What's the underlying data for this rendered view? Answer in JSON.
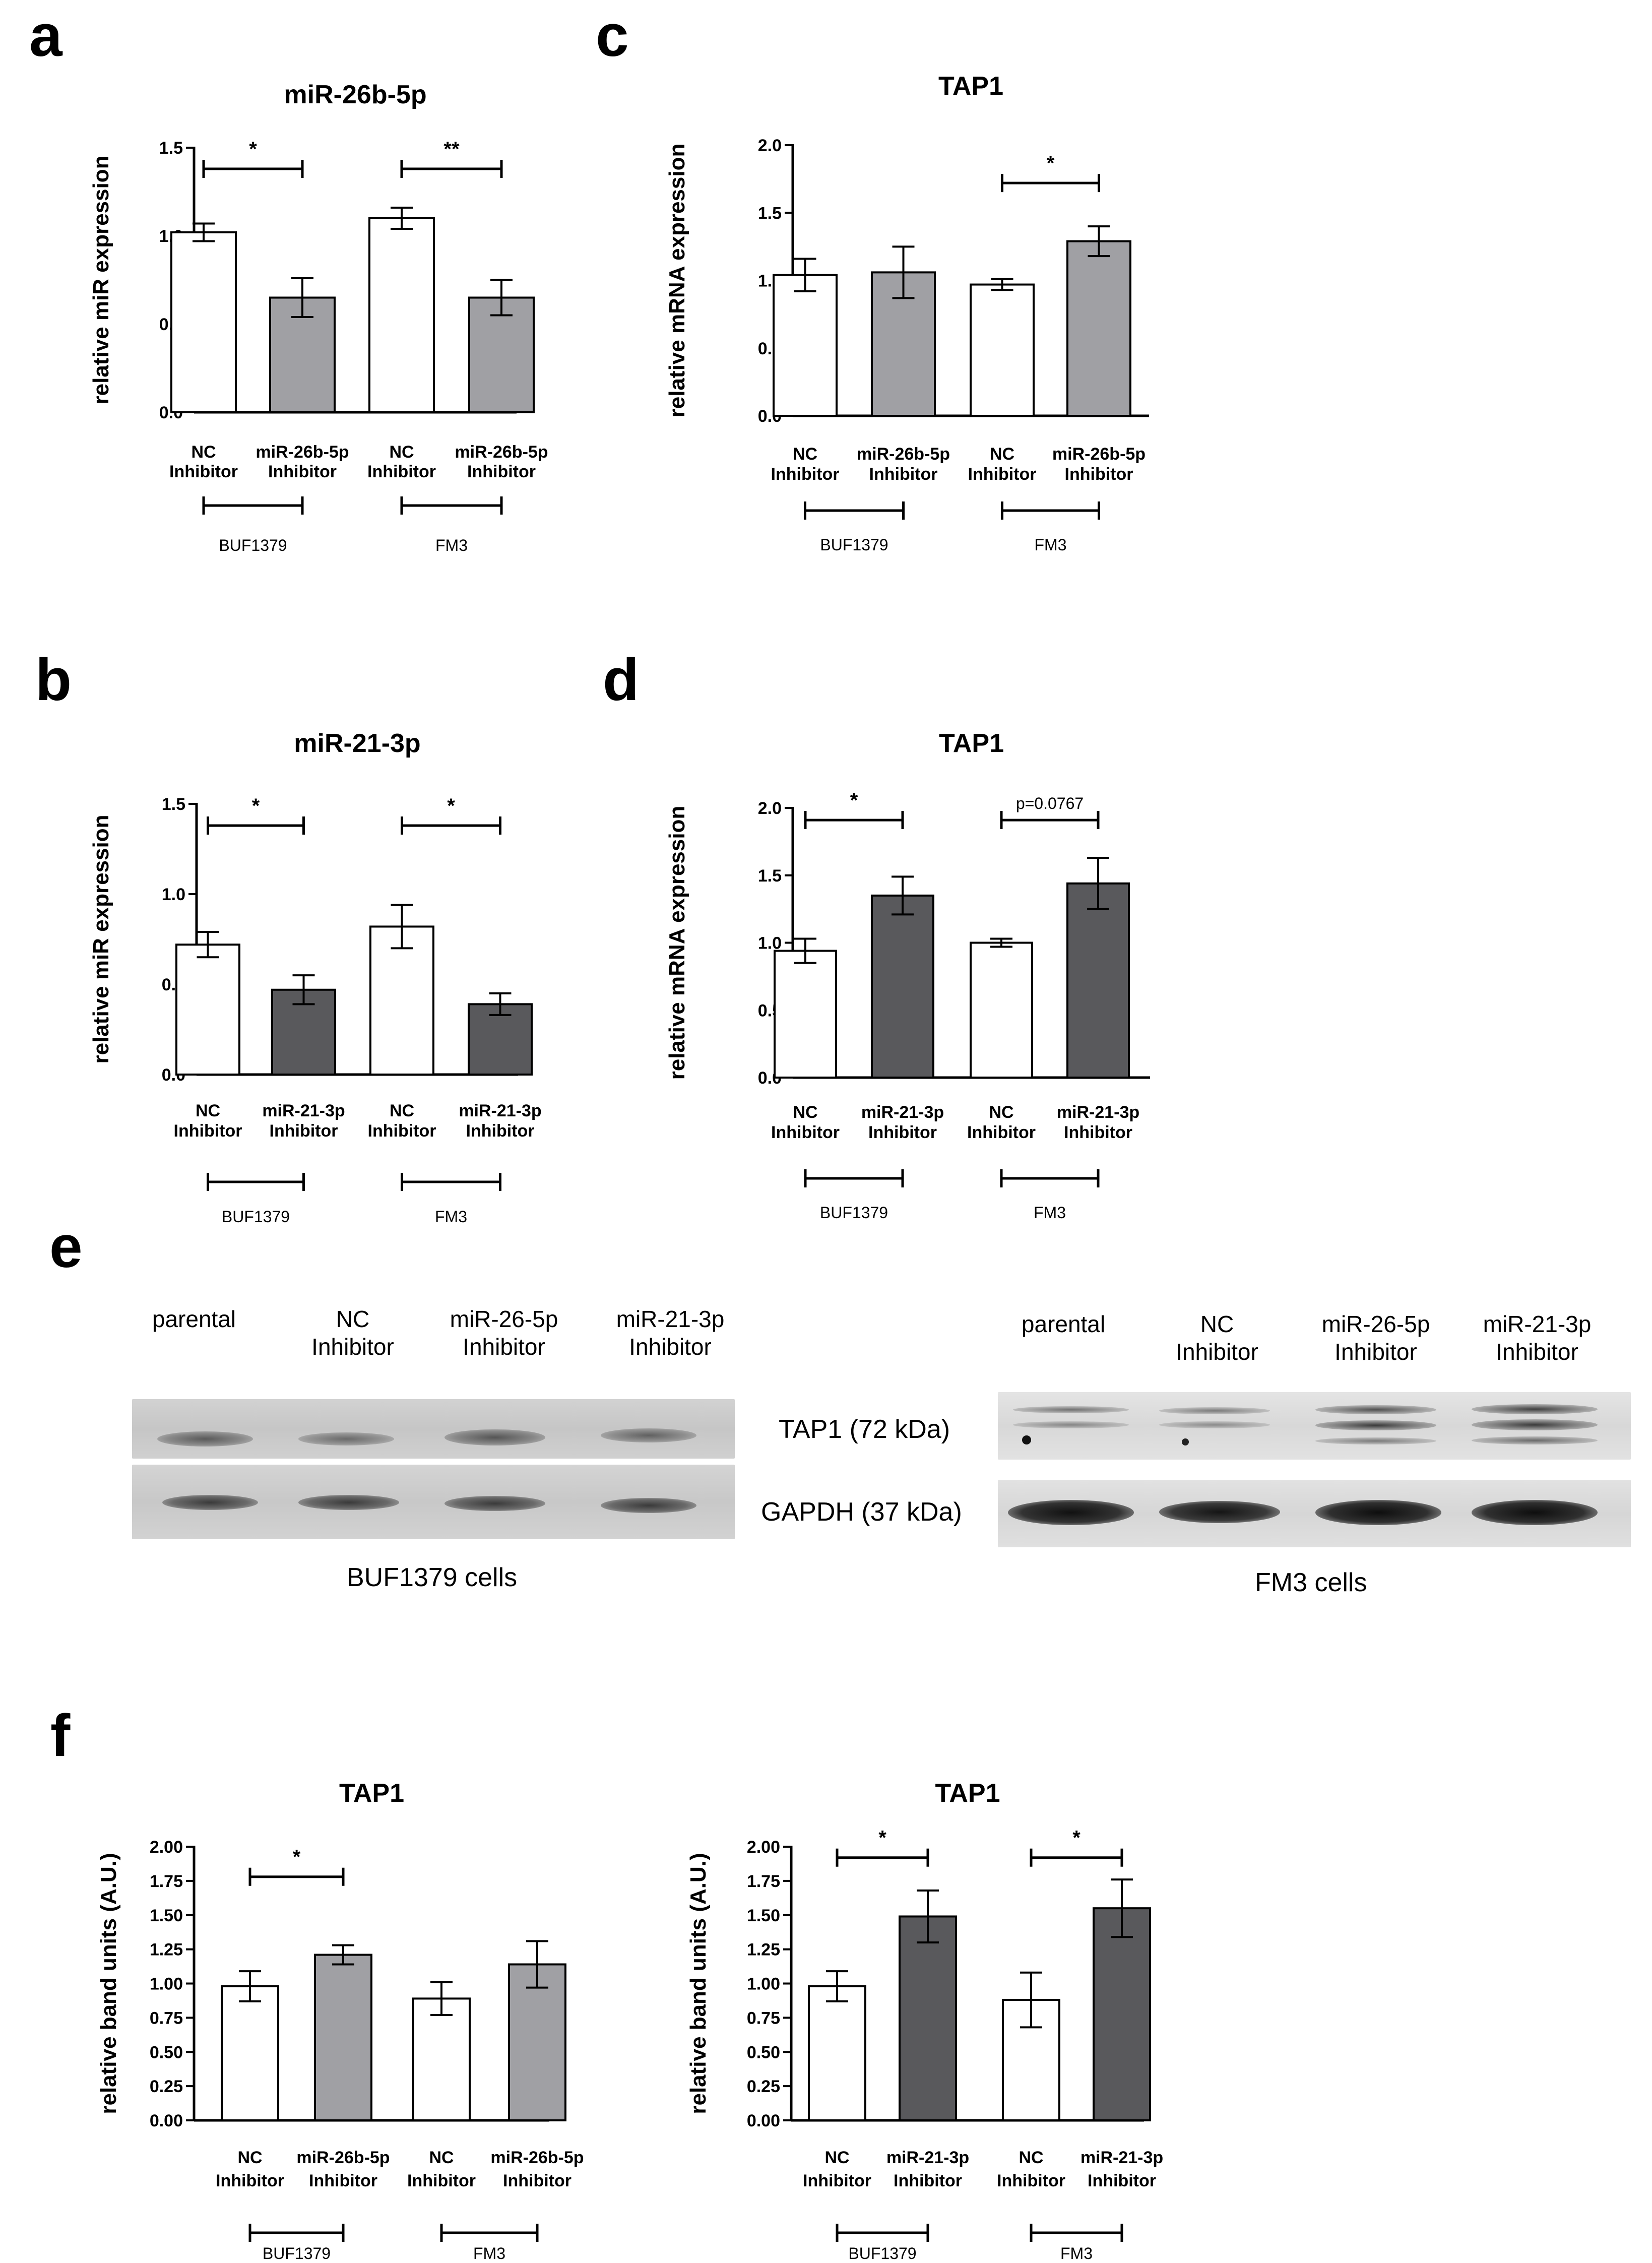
{
  "panels": {
    "a": "a",
    "b": "b",
    "c": "c",
    "d": "d",
    "e": "e",
    "f": "f"
  },
  "chart_data": [
    {
      "id": "a",
      "type": "bar",
      "title": "miR-26b-5p",
      "ylabel": "relative miR expression",
      "ylim": [
        0,
        1.5
      ],
      "yticks": [
        "0.0",
        "0.5",
        "1.0",
        "1.5"
      ],
      "categories": [
        [
          "NC",
          "Inhibitor"
        ],
        [
          "miR-26b-5p",
          "Inhibitor"
        ],
        [
          "NC",
          "Inhibitor"
        ],
        [
          "miR-26b-5p",
          "Inhibitor"
        ]
      ],
      "values": [
        1.02,
        0.65,
        1.1,
        0.65
      ],
      "errors": [
        0.05,
        0.11,
        0.06,
        0.1
      ],
      "fills": [
        "#ffffff",
        "#a0a0a4",
        "#ffffff",
        "#a0a0a4"
      ],
      "groups": [
        "BUF1379",
        "FM3"
      ],
      "significance": [
        {
          "from": 0,
          "to": 1,
          "label": "*",
          "y": 1.38
        },
        {
          "from": 2,
          "to": 3,
          "label": "**",
          "y": 1.38
        }
      ]
    },
    {
      "id": "b",
      "type": "bar",
      "title": "miR-21-3p",
      "ylabel": "relative miR expression",
      "ylim": [
        0,
        1.5
      ],
      "yticks": [
        "0.0",
        "0.5",
        "1.0",
        "1.5"
      ],
      "categories": [
        [
          "NC",
          "Inhibitor"
        ],
        [
          "miR-21-3p",
          "Inhibitor"
        ],
        [
          "NC",
          "Inhibitor"
        ],
        [
          "miR-21-3p",
          "Inhibitor"
        ]
      ],
      "values": [
        0.72,
        0.47,
        0.82,
        0.39
      ],
      "errors": [
        0.07,
        0.08,
        0.12,
        0.06
      ],
      "fills": [
        "#ffffff",
        "#59595c",
        "#ffffff",
        "#59595c"
      ],
      "groups": [
        "BUF1379",
        "FM3"
      ],
      "significance": [
        {
          "from": 0,
          "to": 1,
          "label": "*",
          "y": 1.38
        },
        {
          "from": 2,
          "to": 3,
          "label": "*",
          "y": 1.38
        }
      ]
    },
    {
      "id": "c",
      "type": "bar",
      "title": "TAP1",
      "ylabel": "relative mRNA expression",
      "ylim": [
        0,
        2.0
      ],
      "yticks": [
        "0.0",
        "0.5",
        "1.0",
        "1.5",
        "2.0"
      ],
      "categories": [
        [
          "NC",
          "Inhibitor"
        ],
        [
          "miR-26b-5p",
          "Inhibitor"
        ],
        [
          "NC",
          "Inhibitor"
        ],
        [
          "miR-26b-5p",
          "Inhibitor"
        ]
      ],
      "values": [
        1.04,
        1.06,
        0.97,
        1.29
      ],
      "errors": [
        0.12,
        0.19,
        0.04,
        0.11
      ],
      "fills": [
        "#ffffff",
        "#a0a0a4",
        "#ffffff",
        "#a0a0a4"
      ],
      "groups": [
        "BUF1379",
        "FM3"
      ],
      "significance": [
        {
          "from": 2,
          "to": 3,
          "label": "*",
          "y": 1.72
        }
      ]
    },
    {
      "id": "d",
      "type": "bar",
      "title": "TAP1",
      "ylabel": "relative mRNA expression",
      "ylim": [
        0,
        2.0
      ],
      "yticks": [
        "0.0",
        "0.5",
        "1.0",
        "1.5",
        "2.0"
      ],
      "categories": [
        [
          "NC",
          "Inhibitor"
        ],
        [
          "miR-21-3p",
          "Inhibitor"
        ],
        [
          "NC",
          "Inhibitor"
        ],
        [
          "miR-21-3p",
          "Inhibitor"
        ]
      ],
      "values": [
        0.94,
        1.35,
        1.0,
        1.44
      ],
      "errors": [
        0.09,
        0.14,
        0.03,
        0.19
      ],
      "fills": [
        "#ffffff",
        "#59595c",
        "#ffffff",
        "#59595c"
      ],
      "groups": [
        "BUF1379",
        "FM3"
      ],
      "significance": [
        {
          "from": 0,
          "to": 1,
          "label": "*",
          "y": 1.91
        },
        {
          "from": 2,
          "to": 3,
          "label": "p=0.0767",
          "y": 1.91
        }
      ]
    },
    {
      "id": "f1",
      "type": "bar",
      "title": "TAP1",
      "ylabel": "relative band units (A.U.)",
      "ylim": [
        0,
        2.0
      ],
      "yticks": [
        "0.00",
        "0.25",
        "0.50",
        "0.75",
        "1.00",
        "1.25",
        "1.50",
        "1.75",
        "2.00"
      ],
      "categories": [
        [
          "NC",
          "Inhibitor"
        ],
        [
          "miR-26b-5p",
          "Inhibitor"
        ],
        [
          "NC",
          "Inhibitor"
        ],
        [
          "miR-26b-5p",
          "Inhibitor"
        ]
      ],
      "values": [
        0.98,
        1.21,
        0.89,
        1.14
      ],
      "errors": [
        0.11,
        0.07,
        0.12,
        0.17
      ],
      "fills": [
        "#ffffff",
        "#a0a0a4",
        "#ffffff",
        "#a0a0a4"
      ],
      "groups": [
        "BUF1379",
        "FM3"
      ],
      "significance": [
        {
          "from": 0,
          "to": 1,
          "label": "*",
          "y": 1.78
        }
      ]
    },
    {
      "id": "f2",
      "type": "bar",
      "title": "TAP1",
      "ylabel": "relative band units (A.U.)",
      "ylim": [
        0,
        2.0
      ],
      "yticks": [
        "0.00",
        "0.25",
        "0.50",
        "0.75",
        "1.00",
        "1.25",
        "1.50",
        "1.75",
        "2.00"
      ],
      "categories": [
        [
          "NC",
          "Inhibitor"
        ],
        [
          "miR-21-3p",
          "Inhibitor"
        ],
        [
          "NC",
          "Inhibitor"
        ],
        [
          "miR-21-3p",
          "Inhibitor"
        ]
      ],
      "values": [
        0.98,
        1.49,
        0.88,
        1.55
      ],
      "errors": [
        0.11,
        0.19,
        0.2,
        0.21
      ],
      "fills": [
        "#ffffff",
        "#59595c",
        "#ffffff",
        "#59595c"
      ],
      "groups": [
        "BUF1379",
        "FM3"
      ],
      "significance": [
        {
          "from": 0,
          "to": 1,
          "label": "*",
          "y": 1.92
        },
        {
          "from": 2,
          "to": 3,
          "label": "*",
          "y": 1.92
        }
      ]
    }
  ],
  "western_blot": {
    "left": {
      "lanes": [
        {
          "l1": "parental",
          "l2": ""
        },
        {
          "l1": "NC",
          "l2": "Inhibitor"
        },
        {
          "l1": "miR-26-5p",
          "l2": "Inhibitor"
        },
        {
          "l1": "miR-21-3p",
          "l2": "Inhibitor"
        }
      ],
      "caption": "BUF1379 cells"
    },
    "right": {
      "lanes": [
        {
          "l1": "parental",
          "l2": ""
        },
        {
          "l1": "NC",
          "l2": "Inhibitor"
        },
        {
          "l1": "miR-26-5p",
          "l2": "Inhibitor"
        },
        {
          "l1": "miR-21-3p",
          "l2": "Inhibitor"
        }
      ],
      "caption": "FM3 cells"
    },
    "row_labels": [
      "TAP1 (72 kDa)",
      "GAPDH (37 kDa)"
    ]
  }
}
